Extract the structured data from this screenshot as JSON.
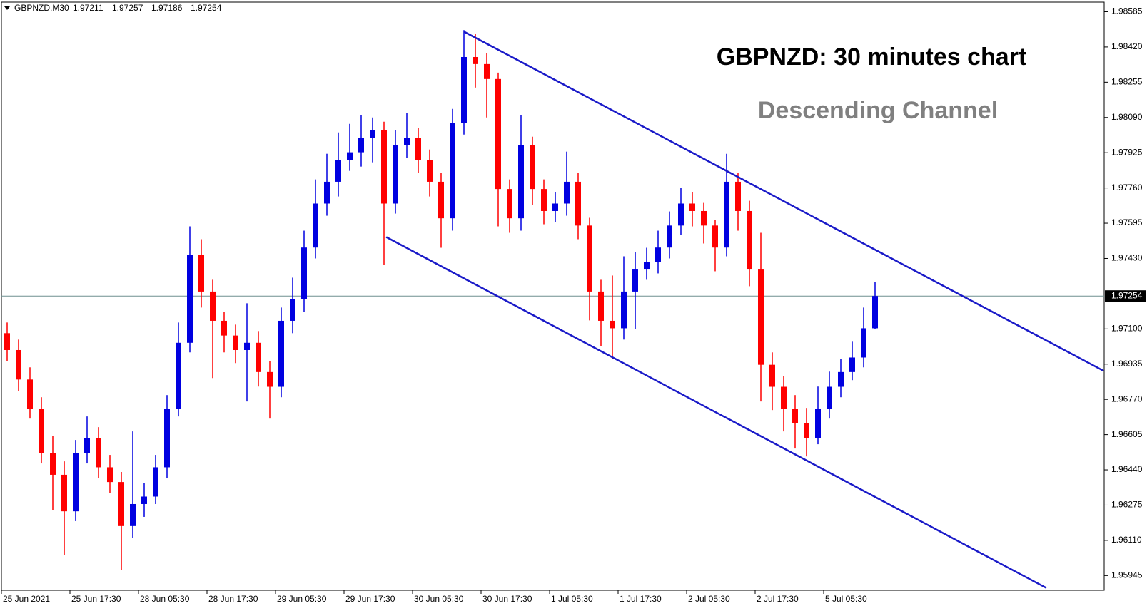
{
  "chart_data": {
    "type": "candlestick",
    "symbol": "GBPNZD,M30",
    "ohlc_header": [
      1.97211,
      1.97257,
      1.97186,
      1.97254
    ],
    "title": "GBPNZD: 30 minutes chart",
    "subtitle": "Descending Channel",
    "up_color": "#0000e0",
    "down_color": "#ff0000",
    "channel_color": "#1a1ac8",
    "ylim": [
      1.95876,
      1.9863
    ],
    "yticks": [
      1.95945,
      {
        "value": 1.9611,
        "label": "1.96110"
      },
      1.96275,
      {
        "value": 1.9644,
        "label": "1.96440"
      },
      1.96605,
      {
        "value": 1.9677,
        "label": "1.96770"
      },
      1.96935,
      {
        "value": 1.971,
        "label": "1.97100"
      },
      {
        "value": 1.9743,
        "label": "1.97430"
      },
      1.97595,
      {
        "value": 1.9776,
        "label": "1.97760"
      },
      1.97925,
      {
        "value": 1.9809,
        "label": "1.98090"
      },
      1.98255,
      {
        "value": 1.9842,
        "label": "1.98420"
      },
      1.98585
    ],
    "last_price": 1.97254,
    "categories": [
      "25 Jun 2021",
      null,
      null,
      null,
      null,
      null,
      "25 Jun 17:30",
      null,
      null,
      null,
      null,
      null,
      "28 Jun 05:30",
      null,
      null,
      null,
      null,
      null,
      "28 Jun 17:30",
      null,
      null,
      null,
      null,
      null,
      "29 Jun 05:30",
      null,
      null,
      null,
      null,
      null,
      "29 Jun 17:30",
      null,
      null,
      null,
      null,
      null,
      "30 Jun 05:30",
      null,
      null,
      null,
      null,
      null,
      "30 Jun 17:30",
      null,
      null,
      null,
      null,
      null,
      "1 Jul 05:30",
      null,
      null,
      null,
      null,
      null,
      "1 Jul 17:30",
      null,
      null,
      null,
      null,
      null,
      "2 Jul 05:30",
      null,
      null,
      null,
      null,
      null,
      "2 Jul 17:30",
      null,
      null,
      null,
      null,
      null,
      "5 Jul 05:30",
      null,
      null,
      null,
      null
    ],
    "open": [
      1.9708,
      1.97001,
      1.96863,
      1.96726,
      1.9652,
      1.96417,
      1.96246,
      1.9652,
      1.96589,
      1.96452,
      1.96383,
      1.96177,
      1.9628,
      1.96315,
      1.96452,
      1.96726,
      1.97035,
      1.97446,
      1.97275,
      1.97138,
      1.97069,
      1.97001,
      1.97035,
      1.96898,
      1.96829,
      1.97138,
      1.97241,
      1.97481,
      1.97687,
      1.97789,
      1.97892,
      1.97927,
      1.97995,
      1.9803,
      1.97687,
      1.97961,
      1.97995,
      1.97892,
      1.97789,
      1.97618,
      1.98064,
      1.98373,
      1.9834,
      1.9827,
      1.97755,
      1.97618,
      1.97961,
      1.97755,
      1.97652,
      1.97687,
      1.97789,
      1.97584,
      1.97275,
      1.97138,
      1.97103,
      1.97275,
      1.97378,
      1.97412,
      1.97481,
      1.97584,
      1.97687,
      1.97652,
      1.97584,
      1.97481,
      1.97789,
      1.97652,
      1.97378,
      1.96932,
      1.96829,
      1.96726,
      1.96658,
      1.96589,
      1.96726,
      1.96829,
      1.96898,
      1.96966,
      1.97103
    ],
    "close": [
      1.97001,
      1.96863,
      1.96726,
      1.9652,
      1.96417,
      1.96246,
      1.9652,
      1.96589,
      1.96452,
      1.96383,
      1.96177,
      1.9628,
      1.96315,
      1.96452,
      1.96726,
      1.97035,
      1.97446,
      1.97275,
      1.97138,
      1.97069,
      1.97001,
      1.97035,
      1.96898,
      1.96829,
      1.97138,
      1.97241,
      1.97481,
      1.97687,
      1.97789,
      1.97892,
      1.97927,
      1.97995,
      1.9803,
      1.97687,
      1.97961,
      1.97995,
      1.97892,
      1.97789,
      1.97618,
      1.98064,
      1.98373,
      1.9834,
      1.9827,
      1.97755,
      1.97618,
      1.97961,
      1.97755,
      1.97652,
      1.97687,
      1.97789,
      1.97584,
      1.97275,
      1.97138,
      1.97103,
      1.97275,
      1.97378,
      1.97412,
      1.97481,
      1.97584,
      1.97687,
      1.97652,
      1.97584,
      1.97481,
      1.97789,
      1.97652,
      1.97378,
      1.96932,
      1.96829,
      1.96726,
      1.96658,
      1.96589,
      1.96726,
      1.96829,
      1.96898,
      1.96966,
      1.97103,
      1.97254
    ],
    "high": [
      1.9713,
      1.9705,
      1.9692,
      1.9678,
      1.966,
      1.9648,
      1.9658,
      1.9669,
      1.9664,
      1.9651,
      1.9643,
      1.9662,
      1.9638,
      1.9651,
      1.9679,
      1.9713,
      1.9758,
      1.9752,
      1.9733,
      1.9718,
      1.9712,
      1.9722,
      1.9709,
      1.9695,
      1.972,
      1.9734,
      1.9756,
      1.978,
      1.9792,
      1.9802,
      1.9806,
      1.981,
      1.9809,
      1.9807,
      1.9803,
      1.9811,
      1.9804,
      1.9794,
      1.9783,
      1.9813,
      1.98499,
      1.9848,
      1.9839,
      1.983,
      1.978,
      1.981,
      1.98,
      1.978,
      1.9774,
      1.9793,
      1.9783,
      1.9762,
      1.9733,
      1.9735,
      1.9744,
      1.9746,
      1.9748,
      1.9756,
      1.9765,
      1.9776,
      1.9774,
      1.9769,
      1.9761,
      1.9792,
      1.9783,
      1.977,
      1.9755,
      1.9699,
      1.9688,
      1.9679,
      1.9673,
      1.9683,
      1.969,
      1.9696,
      1.9704,
      1.972,
      1.9732
    ],
    "low": [
      1.9695,
      1.9681,
      1.9668,
      1.9647,
      1.9625,
      1.9604,
      1.962,
      1.9647,
      1.964,
      1.9633,
      1.95972,
      1.9612,
      1.9622,
      1.9628,
      1.964,
      1.9669,
      1.9699,
      1.972,
      1.9687,
      1.9699,
      1.9694,
      1.9676,
      1.9683,
      1.9668,
      1.9678,
      1.9708,
      1.9718,
      1.9743,
      1.9763,
      1.9772,
      1.9784,
      1.9786,
      1.9788,
      1.974,
      1.9764,
      1.979,
      1.9783,
      1.9772,
      1.9748,
      1.9756,
      1.9801,
      1.9823,
      1.9809,
      1.9758,
      1.9755,
      1.9756,
      1.9768,
      1.9759,
      1.976,
      1.9763,
      1.9752,
      1.9714,
      1.9702,
      1.9696,
      1.9705,
      1.971,
      1.9733,
      1.9736,
      1.9743,
      1.9754,
      1.9758,
      1.975,
      1.9737,
      1.9744,
      1.9756,
      1.973,
      1.9676,
      1.9672,
      1.9662,
      1.9654,
      1.96503,
      1.9656,
      1.9668,
      1.9678,
      1.9686,
      1.9692,
      1.971
    ],
    "channel": [
      {
        "x": [
          40,
          96
        ],
        "y": [
          1.98492,
          1.96904
        ]
      },
      {
        "x": [
          33.2,
          91
        ],
        "y": [
          1.9753,
          1.95887
        ]
      }
    ]
  }
}
